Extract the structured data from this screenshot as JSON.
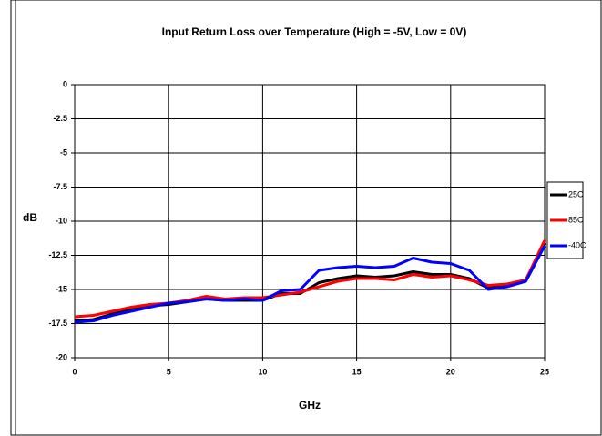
{
  "chart_data": {
    "type": "line",
    "title": "Input Return Loss over Temperature (High = -5V, Low = 0V)",
    "x_label": "GHz",
    "y_label": "dB",
    "x": [
      0,
      1,
      2,
      3,
      4,
      5,
      6,
      7,
      8,
      9,
      10,
      11,
      12,
      13,
      14,
      15,
      16,
      17,
      18,
      19,
      20,
      21,
      22,
      23,
      24,
      25
    ],
    "series": [
      {
        "name": "25C",
        "color": "#000000",
        "values": [
          -17.3,
          -17.2,
          -16.8,
          -16.5,
          -16.2,
          -16.1,
          -15.9,
          -15.7,
          -15.8,
          -15.8,
          -15.8,
          -15.3,
          -15.3,
          -14.5,
          -14.2,
          -14.0,
          -14.1,
          -14.0,
          -13.7,
          -13.9,
          -13.9,
          -14.2,
          -14.9,
          -14.7,
          -14.3,
          -11.6
        ]
      },
      {
        "name": "85C",
        "color": "#ff0000",
        "values": [
          -17.0,
          -16.9,
          -16.6,
          -16.3,
          -16.1,
          -16.0,
          -15.8,
          -15.5,
          -15.7,
          -15.6,
          -15.6,
          -15.4,
          -15.2,
          -14.8,
          -14.4,
          -14.2,
          -14.2,
          -14.3,
          -13.9,
          -14.1,
          -14.0,
          -14.3,
          -14.7,
          -14.6,
          -14.3,
          -11.4
        ]
      },
      {
        "name": "-40C",
        "color": "#0000ff",
        "values": [
          -17.4,
          -17.3,
          -16.9,
          -16.6,
          -16.3,
          -16.0,
          -15.9,
          -15.7,
          -15.8,
          -15.7,
          -15.8,
          -15.1,
          -15.0,
          -13.6,
          -13.4,
          -13.3,
          -13.4,
          -13.3,
          -12.7,
          -13.0,
          -13.1,
          -13.6,
          -15.0,
          -14.8,
          -14.4,
          -11.8
        ]
      }
    ],
    "xlim": [
      0,
      25
    ],
    "xticks": [
      0,
      5,
      10,
      15,
      20,
      25
    ],
    "ylim": [
      -20,
      0
    ],
    "yticks": [
      0,
      -2.5,
      -5,
      -7.5,
      -10,
      -12.5,
      -15,
      -17.5,
      -20
    ],
    "grid": true,
    "legend": "right"
  }
}
